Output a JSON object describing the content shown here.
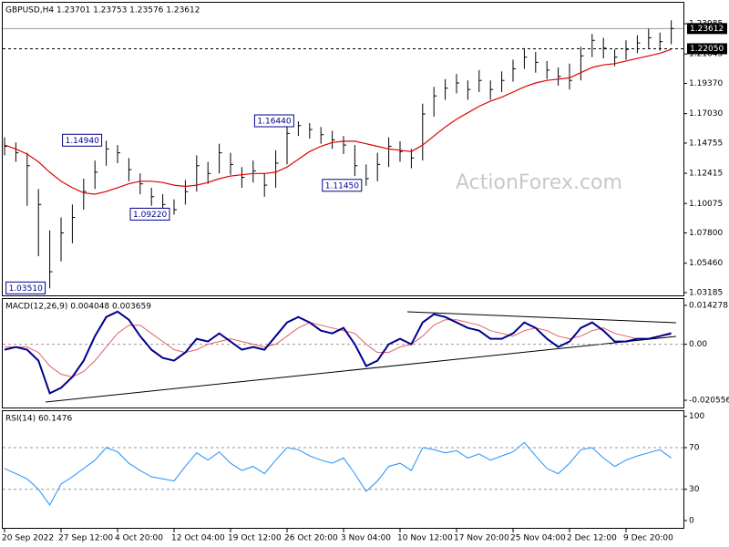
{
  "chart_data": [
    {
      "type": "price",
      "header": "GBPUSD,H4  1.23701 1.23753 1.23576 1.23612",
      "watermark": "ActionForex.com",
      "ylim": [
        1.0297,
        1.2561
      ],
      "yticks": [
        1.03185,
        {
          "value": 1.0546,
          "label": "1.05460"
        },
        {
          "value": 1.078,
          "label": "1.07800"
        },
        1.10075,
        1.12415,
        1.14755,
        {
          "value": 1.1703,
          "label": "1.17030"
        },
        {
          "value": 1.1937,
          "label": "1.19370"
        },
        1.21645,
        1.23985
      ],
      "bar_color": "#000000",
      "ma_color": "#e00000",
      "high": [
        1.152,
        1.148,
        1.14,
        1.112,
        1.08,
        1.09,
        1.1,
        1.12,
        1.134,
        1.1494,
        1.146,
        1.136,
        1.124,
        1.113,
        1.108,
        1.104,
        1.119,
        1.138,
        1.133,
        1.147,
        1.14,
        1.129,
        1.134,
        1.124,
        1.142,
        1.16,
        1.1644,
        1.163,
        1.16,
        1.157,
        1.153,
        1.146,
        1.131,
        1.14,
        1.152,
        1.149,
        1.143,
        1.178,
        1.191,
        1.197,
        1.201,
        1.196,
        1.204,
        1.196,
        1.203,
        1.212,
        1.221,
        1.218,
        1.211,
        1.206,
        1.209,
        1.222,
        1.232,
        1.229,
        1.22,
        1.227,
        1.231,
        1.236,
        1.233,
        1.2425
      ],
      "low": [
        1.138,
        1.133,
        1.099,
        1.06,
        1.0351,
        1.056,
        1.07,
        1.096,
        1.112,
        1.13,
        1.132,
        1.118,
        1.108,
        1.099,
        1.094,
        1.0922,
        1.1,
        1.11,
        1.116,
        1.124,
        1.123,
        1.113,
        1.117,
        1.106,
        1.113,
        1.131,
        1.153,
        1.151,
        1.147,
        1.143,
        1.139,
        1.122,
        1.1145,
        1.118,
        1.129,
        1.133,
        1.128,
        1.134,
        1.168,
        1.181,
        1.186,
        1.181,
        1.187,
        1.181,
        1.187,
        1.195,
        1.205,
        1.202,
        1.197,
        1.192,
        1.189,
        1.196,
        1.214,
        1.213,
        1.207,
        1.212,
        1.217,
        1.221,
        1.219,
        1.224
      ],
      "close": [
        1.145,
        1.14,
        1.13,
        1.1,
        1.048,
        1.078,
        1.09,
        1.11,
        1.125,
        1.143,
        1.14,
        1.127,
        1.116,
        1.106,
        1.1,
        1.096,
        1.11,
        1.13,
        1.124,
        1.14,
        1.131,
        1.121,
        1.126,
        1.115,
        1.132,
        1.155,
        1.161,
        1.158,
        1.154,
        1.15,
        1.146,
        1.13,
        1.12,
        1.131,
        1.145,
        1.141,
        1.136,
        1.17,
        1.184,
        1.19,
        1.194,
        1.189,
        1.196,
        1.189,
        1.196,
        1.205,
        1.214,
        1.21,
        1.204,
        1.199,
        1.196,
        1.215,
        1.227,
        1.221,
        1.214,
        1.22,
        1.225,
        1.229,
        1.226,
        1.23612
      ],
      "ma": [
        1.146,
        1.143,
        1.139,
        1.133,
        1.125,
        1.118,
        1.113,
        1.109,
        1.108,
        1.11,
        1.113,
        1.116,
        1.118,
        1.118,
        1.117,
        1.115,
        1.114,
        1.115,
        1.117,
        1.12,
        1.122,
        1.123,
        1.124,
        1.124,
        1.125,
        1.129,
        1.135,
        1.141,
        1.145,
        1.148,
        1.149,
        1.149,
        1.147,
        1.145,
        1.143,
        1.142,
        1.141,
        1.146,
        1.153,
        1.16,
        1.166,
        1.171,
        1.176,
        1.18,
        1.183,
        1.187,
        1.191,
        1.194,
        1.196,
        1.197,
        1.198,
        1.202,
        1.206,
        1.208,
        1.209,
        1.211,
        1.213,
        1.215,
        1.217,
        1.22
      ],
      "annotations": [
        {
          "value": 1.1494,
          "label": "1.14940",
          "index": 9
        },
        {
          "value": 1.1644,
          "label": "1.16440",
          "index": 26
        },
        {
          "value": 1.1145,
          "label": "1.11450",
          "index": 32
        },
        {
          "value": 1.0922,
          "label": "1.09220",
          "index": 15
        },
        {
          "value": 1.0351,
          "label": "1.03510",
          "index": 4
        }
      ],
      "price_lines": [
        {
          "value": 1.23612,
          "label": "1.23612",
          "style": "solid"
        },
        {
          "value": 1.2205,
          "label": "1.22050",
          "style": "dashed"
        }
      ]
    },
    {
      "type": "macd",
      "header": "MACD(12,26,9) 0.004048 0.003659",
      "ylim": [
        -0.02321,
        0.0166
      ],
      "yticks": [
        -0.020556,
        {
          "value": 0,
          "label": "0.00"
        },
        0.014278
      ],
      "macd_color": "#00008b",
      "signal_color": "#e06060",
      "macd": [
        -0.002,
        -0.001,
        -0.002,
        -0.006,
        -0.018,
        -0.016,
        -0.012,
        -0.006,
        0.003,
        0.01,
        0.012,
        0.009,
        0.003,
        -0.002,
        -0.005,
        -0.006,
        -0.003,
        0.002,
        0.001,
        0.004,
        0.001,
        -0.002,
        -0.001,
        -0.002,
        0.003,
        0.008,
        0.01,
        0.008,
        0.005,
        0.004,
        0.006,
        0.0,
        -0.008,
        -0.006,
        0.0,
        0.002,
        0.0,
        0.008,
        0.011,
        0.01,
        0.008,
        0.006,
        0.005,
        0.002,
        0.002,
        0.004,
        0.008,
        0.006,
        0.002,
        -0.001,
        0.001,
        0.006,
        0.008,
        0.005,
        0.001,
        0.001,
        0.002,
        0.002,
        0.003,
        0.004048
      ],
      "signal": [
        -0.001,
        -0.001,
        -0.001,
        -0.003,
        -0.008,
        -0.011,
        -0.012,
        -0.01,
        -0.006,
        -0.001,
        0.004,
        0.007,
        0.007,
        0.004,
        0.001,
        -0.002,
        -0.003,
        -0.002,
        0.0,
        0.001,
        0.002,
        0.001,
        0.0,
        -0.001,
        0.0,
        0.003,
        0.006,
        0.008,
        0.007,
        0.006,
        0.005,
        0.004,
        0.0,
        -0.003,
        -0.003,
        -0.001,
        0.0,
        0.003,
        0.007,
        0.009,
        0.009,
        0.008,
        0.007,
        0.005,
        0.004,
        0.003,
        0.005,
        0.006,
        0.005,
        0.003,
        0.002,
        0.003,
        0.005,
        0.006,
        0.004,
        0.003,
        0.002,
        0.002,
        0.003,
        0.003659
      ]
    },
    {
      "type": "rsi",
      "header": "RSI(14) 60.1476",
      "ylim": [
        -7,
        105
      ],
      "yticks": [
        0,
        30,
        70,
        100
      ],
      "levels": [
        30,
        70
      ],
      "color": "#1e90ff",
      "values": [
        50,
        45,
        40,
        30,
        15,
        35,
        42,
        50,
        58,
        70,
        66,
        55,
        48,
        42,
        40,
        38,
        52,
        65,
        58,
        66,
        55,
        48,
        52,
        45,
        58,
        70,
        68,
        62,
        58,
        55,
        60,
        45,
        28,
        38,
        52,
        55,
        48,
        70,
        68,
        65,
        67,
        60,
        64,
        58,
        62,
        66,
        75,
        62,
        50,
        45,
        55,
        68,
        70,
        60,
        52,
        58,
        62,
        65,
        68,
        60.1476
      ],
      "categories": [
        "20 Sep 2022",
        null,
        null,
        null,
        null,
        "27 Sep 12:00",
        null,
        null,
        null,
        null,
        "4 Oct 20:00",
        null,
        null,
        null,
        null,
        "12 Oct 04:00",
        null,
        null,
        null,
        null,
        "19 Oct 12:00",
        null,
        null,
        null,
        null,
        "26 Oct 20:00",
        null,
        null,
        null,
        null,
        "3 Nov 04:00",
        null,
        null,
        null,
        null,
        "10 Nov 12:00",
        null,
        null,
        null,
        null,
        "17 Nov 20:00",
        null,
        null,
        null,
        null,
        "25 Nov 04:00",
        null,
        null,
        null,
        null,
        "2 Dec 12:00",
        null,
        null,
        null,
        null,
        "9 Dec 20:00",
        null,
        null,
        null,
        null
      ]
    }
  ]
}
